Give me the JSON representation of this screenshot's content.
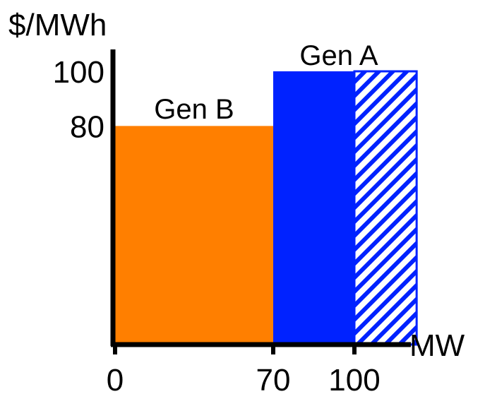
{
  "chart_data": {
    "type": "bar",
    "title": "",
    "xlabel": "MW",
    "ylabel": "$/MWh",
    "xlim": [
      0,
      130
    ],
    "ylim": [
      0,
      110
    ],
    "x_ticks": [
      "0",
      "70",
      "100"
    ],
    "x_tick_values": [
      0,
      70,
      100
    ],
    "y_ticks": [
      "80",
      "100"
    ],
    "y_tick_values": [
      80,
      100
    ],
    "grid": false,
    "segments": [
      {
        "name": "Gen B",
        "x_start": 0,
        "x_end": 70,
        "price": 80,
        "color": "#ff7f00",
        "pattern": "solid"
      },
      {
        "name": "Gen A",
        "x_start": 70,
        "x_end": 100,
        "price": 100,
        "color": "#0022ff",
        "pattern": "solid"
      },
      {
        "name": "",
        "x_start": 100,
        "x_end": 123,
        "price": 100,
        "color": "#0022ff",
        "pattern": "hatched"
      }
    ]
  },
  "colors": {
    "axis": "#000000",
    "gen_b": "#ff7f00",
    "gen_a": "#0022ff"
  }
}
